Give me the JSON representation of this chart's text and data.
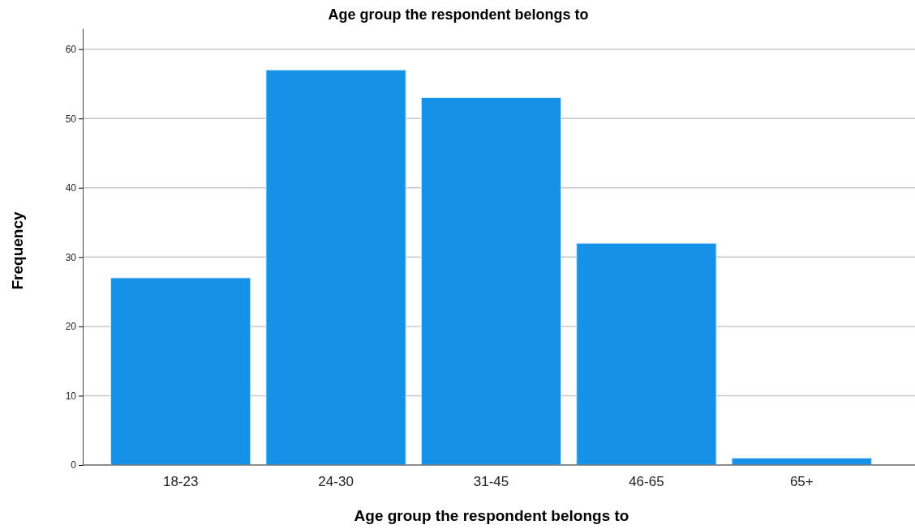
{
  "chart_data": {
    "type": "bar",
    "title": "Age group the respondent belongs to",
    "xlabel": "Age group the respondent belongs to",
    "ylabel": "Frequency",
    "categories": [
      "18-23",
      "24-30",
      "31-45",
      "46-65",
      "65+"
    ],
    "values": [
      27,
      57,
      53,
      32,
      1
    ],
    "color": "#1591e8",
    "ylim": [
      0,
      63
    ],
    "yticks": [
      0,
      10,
      20,
      30,
      40,
      50,
      60
    ],
    "grid": "y"
  }
}
